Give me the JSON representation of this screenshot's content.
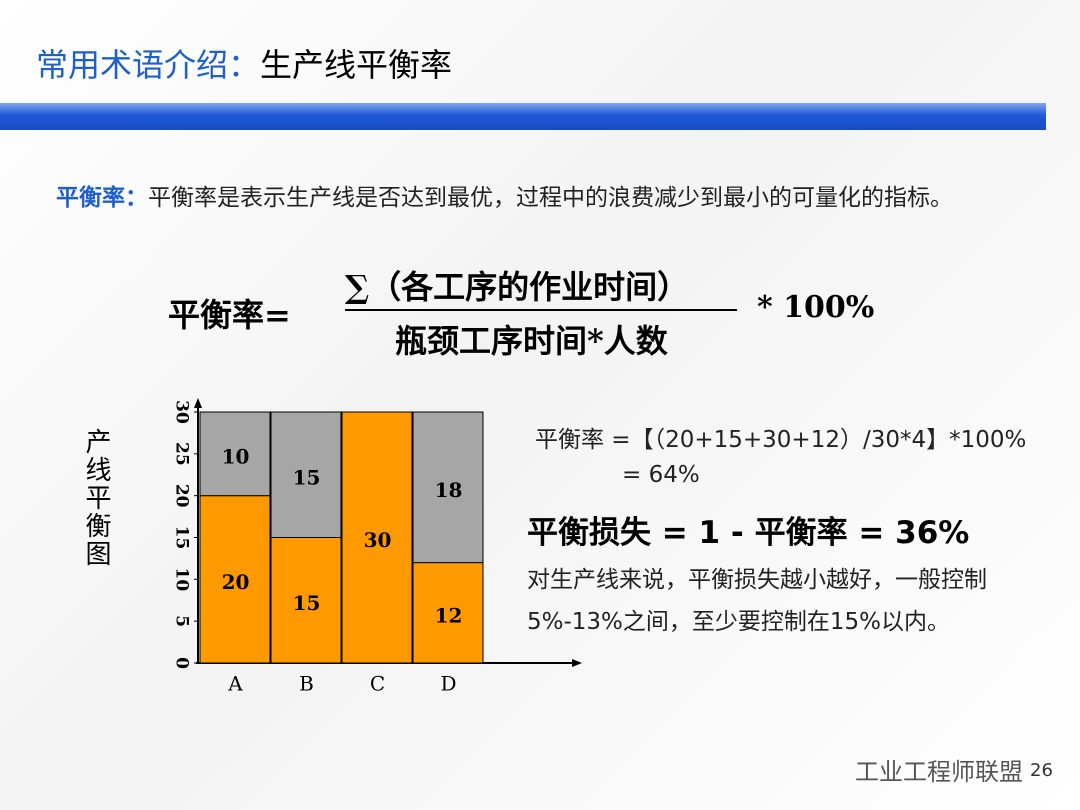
{
  "header": {
    "title_prefix": "常用术语介绍：",
    "title_main": "生产线平衡率"
  },
  "definition": {
    "term": "平衡率：",
    "text": "平衡率是表示生产线是否达到最优，过程中的浪费减少到最小的可量化的指标。"
  },
  "formula": {
    "lhs": "平衡率=",
    "numerator": "∑（各工序的作业时间）",
    "denominator": "瓶颈工序时间*人数",
    "multiplier": "* 100%"
  },
  "chart_data": {
    "type": "bar",
    "stacked": true,
    "y_label": "产线平衡图",
    "categories": [
      "A",
      "B",
      "C",
      "D"
    ],
    "series": [
      {
        "color": "#ff9900",
        "values": [
          20,
          15,
          30,
          12
        ]
      },
      {
        "color": "#a6a6a6",
        "values": [
          10,
          15,
          null,
          18
        ]
      }
    ],
    "ylim": [
      0,
      30
    ],
    "yticks": [
      0,
      5,
      10,
      15,
      20,
      25,
      30
    ]
  },
  "notes": {
    "calculation": [
      "平衡率 =【（20+15+30+12）/30*4】*100%",
      "= 64%"
    ],
    "loss": "平衡损失 = 1 - 平衡率 = 36%",
    "comment": [
      "对生产线来说，平衡损失越小越好，一般控制",
      "5%-13%之间，至少要控制在15%以内。"
    ]
  },
  "footer": {
    "watermark": "工业工程师联盟",
    "page": "26"
  }
}
